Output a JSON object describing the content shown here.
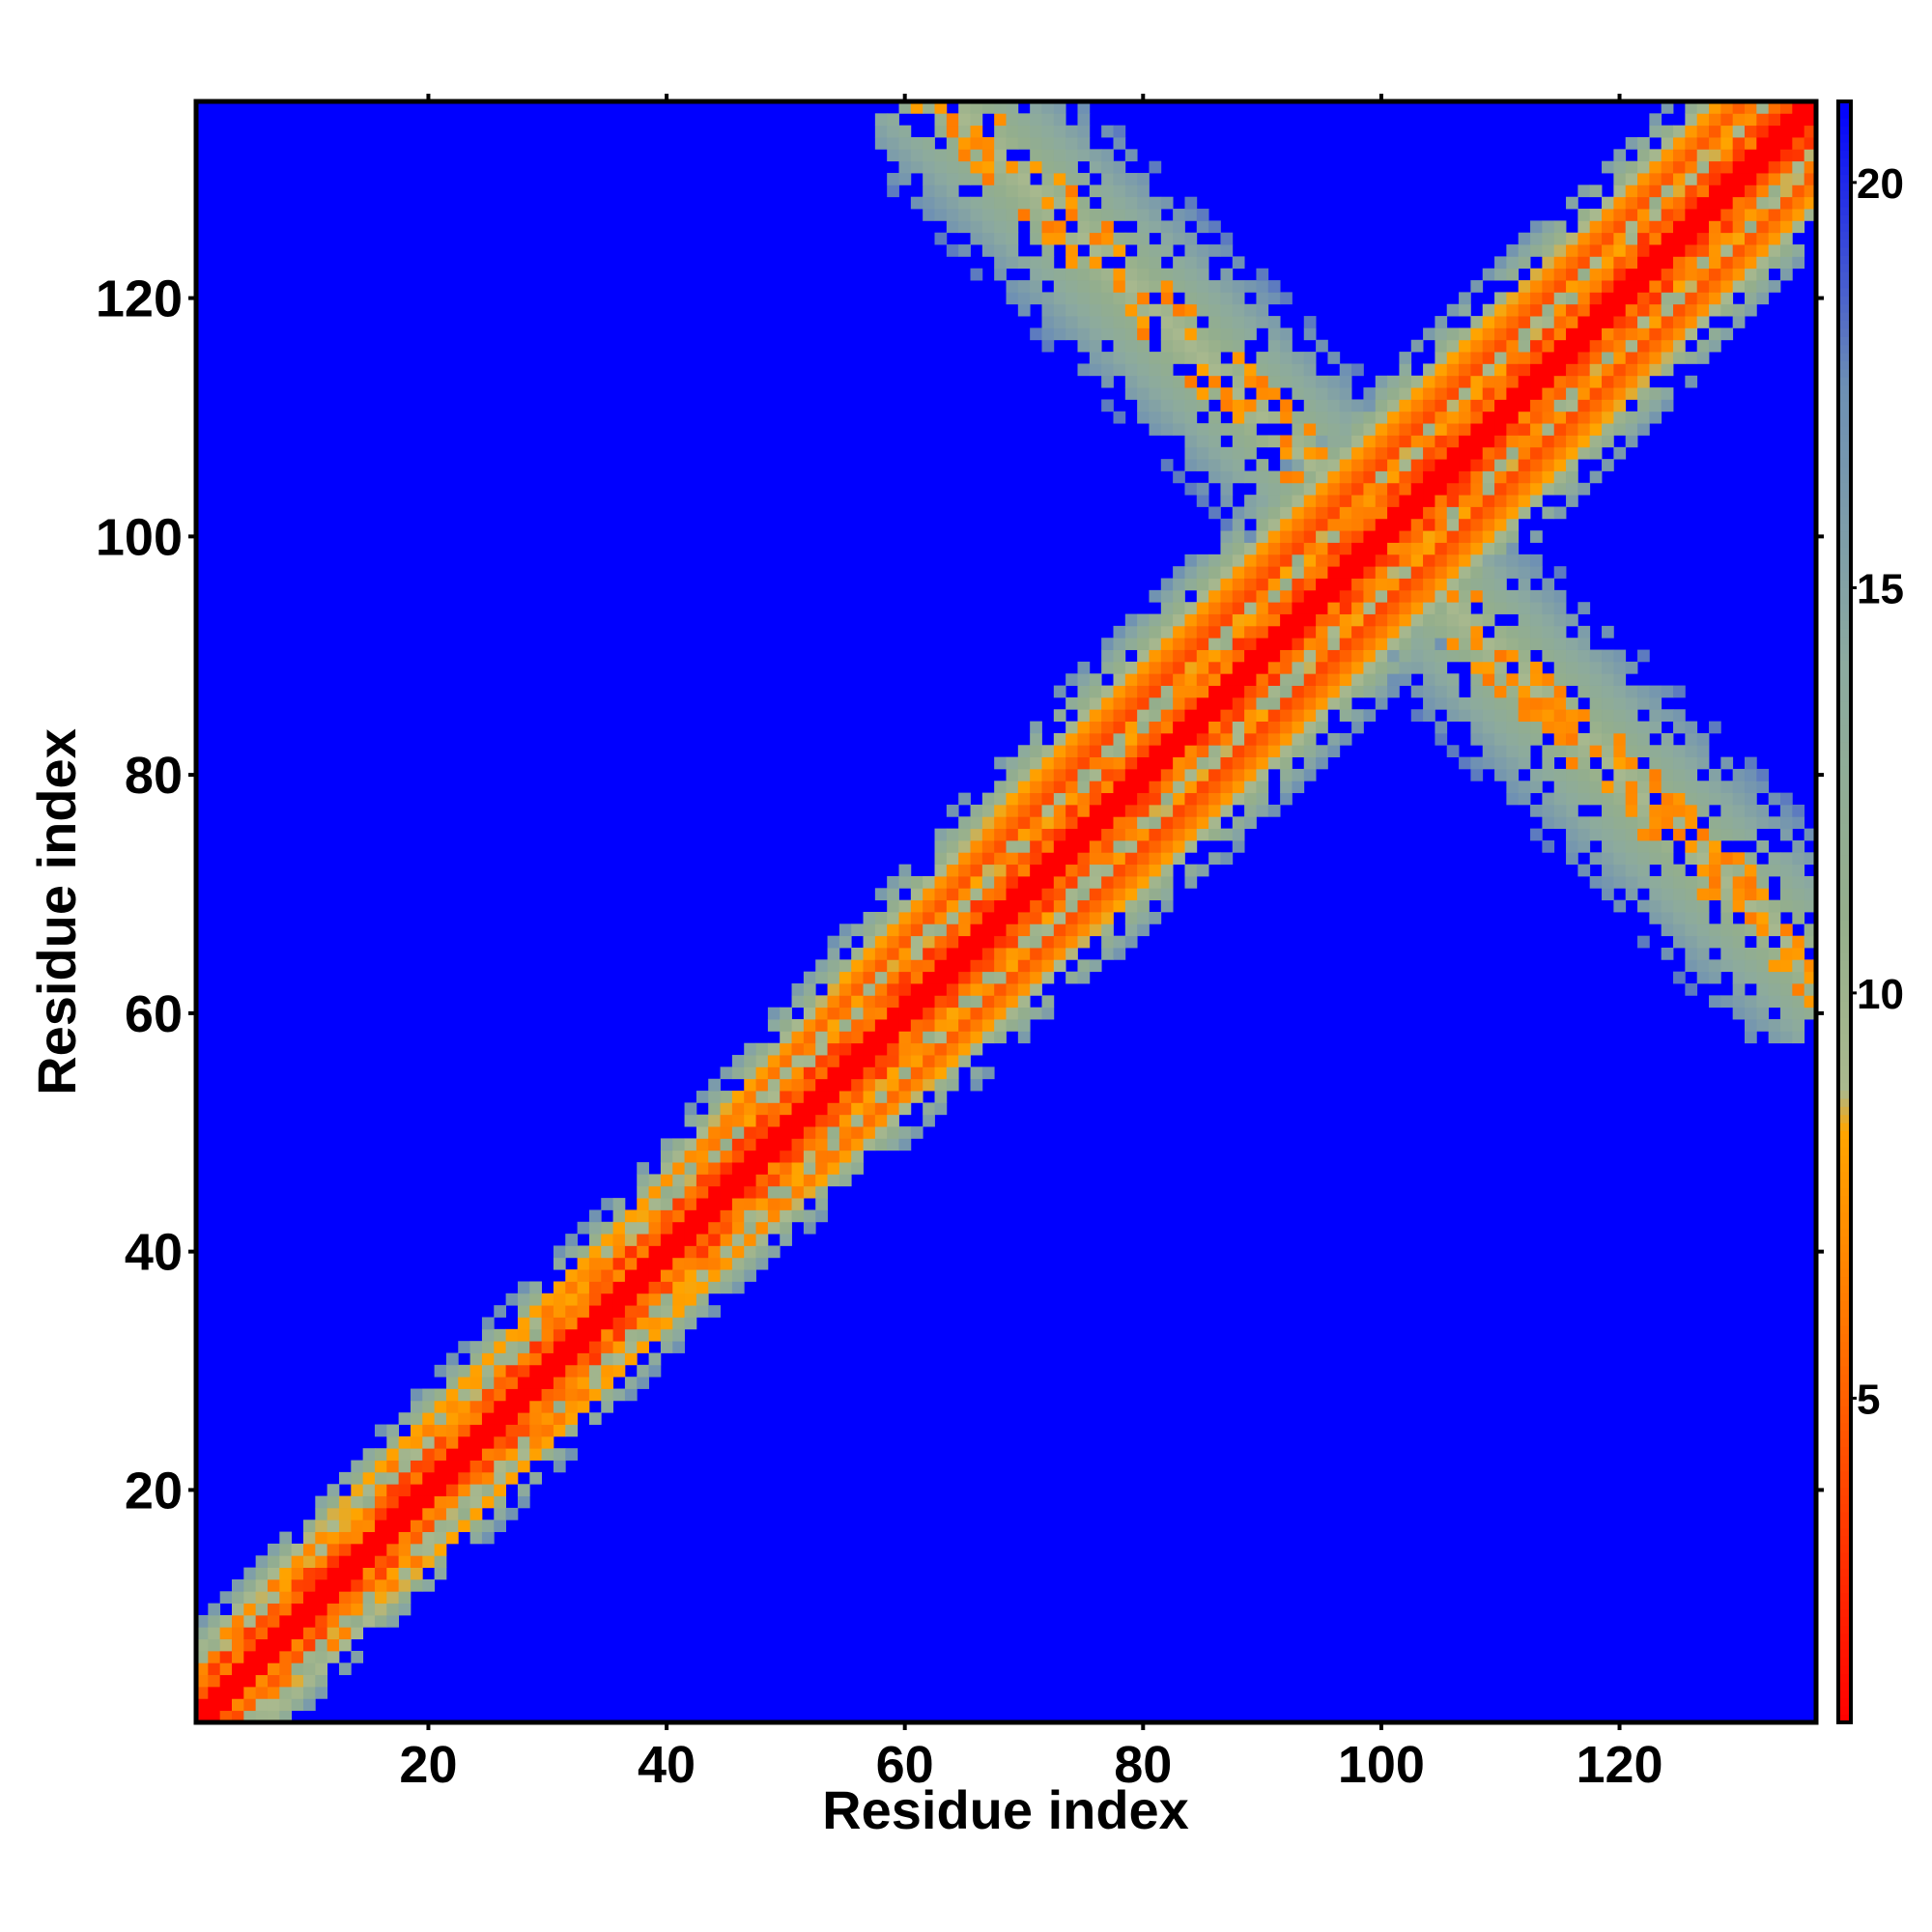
{
  "chart_data": {
    "type": "heatmap",
    "title": "",
    "xlabel": "Residue index",
    "ylabel": "Residue index",
    "n_residues": 136,
    "xlim": [
      1,
      136
    ],
    "ylim": [
      1,
      136
    ],
    "x_ticks": [
      20,
      40,
      60,
      80,
      100,
      120
    ],
    "y_ticks": [
      20,
      40,
      60,
      80,
      100,
      120
    ],
    "colorbar": {
      "range": [
        1,
        21
      ],
      "ticks": [
        5,
        10,
        15,
        20
      ],
      "stops": [
        {
          "value": 1,
          "color": "#ff0000"
        },
        {
          "value": 3.5,
          "color": "#ff3c00"
        },
        {
          "value": 6,
          "color": "#ff7800"
        },
        {
          "value": 8.3,
          "color": "#ffa500"
        },
        {
          "value": 8.8,
          "color": "#a9b98e"
        },
        {
          "value": 11,
          "color": "#94ae8c"
        },
        {
          "value": 14,
          "color": "#8caa9f"
        },
        {
          "value": 17.5,
          "color": "#6d8fb4"
        },
        {
          "value": 21,
          "color": "#0000ff"
        }
      ]
    },
    "background_value": 21,
    "diagonal_band": {
      "description": "low distance along main diagonal i = j",
      "core_value": 1,
      "band_width_residues": [
        {
          "residue": 1,
          "width": 8
        },
        {
          "residue": 20,
          "width": 9
        },
        {
          "residue": 40,
          "width": 9
        },
        {
          "residue": 60,
          "width": 12
        },
        {
          "residue": 80,
          "width": 14
        },
        {
          "residue": 100,
          "width": 14
        },
        {
          "residue": 120,
          "width": 13
        },
        {
          "residue": 136,
          "width": 12
        }
      ]
    },
    "antiparallel_contacts": {
      "description": "off-diagonal antiparallel band between residues 58-135 and 101-135",
      "segments": [
        {
          "x": 60,
          "y": 135
        },
        {
          "x": 75,
          "y": 125
        },
        {
          "x": 88,
          "y": 112
        },
        {
          "x": 100,
          "y": 100
        },
        {
          "x": 112,
          "y": 88
        },
        {
          "x": 125,
          "y": 75
        },
        {
          "x": 135,
          "y": 60
        }
      ],
      "half_width": 6
    },
    "grid": false,
    "legend": "colorbar-right"
  }
}
